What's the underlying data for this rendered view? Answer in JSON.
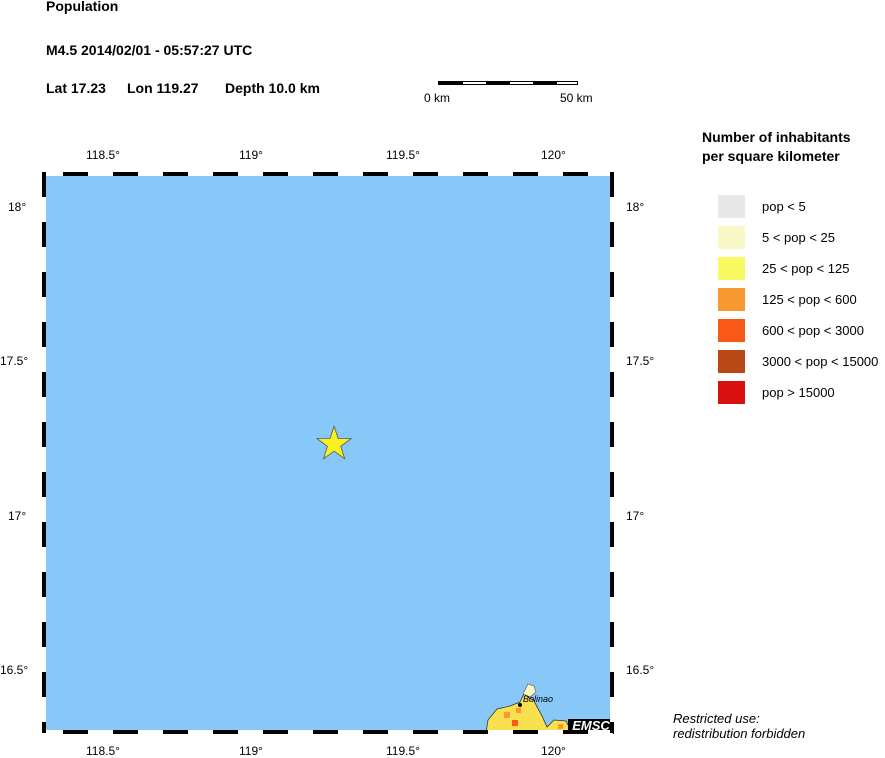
{
  "title": "Population",
  "event": "M4.5  2014/02/01 - 05:57:27 UTC",
  "location": {
    "lat": "Lat 17.23",
    "lon": "Lon 119.27",
    "depth": "Depth  10.0 km"
  },
  "scale": {
    "start": "0 km",
    "end": "50 km"
  },
  "lon_ticks": [
    "118.5°",
    "119°",
    "119.5°",
    "120°"
  ],
  "lat_ticks": [
    "18°",
    "17.5°",
    "17°",
    "16.5°"
  ],
  "epicenter": {
    "lat": 17.23,
    "lon": 119.27,
    "color": "#f8f020"
  },
  "place": "Bolinao",
  "logo": "EMSC",
  "legend": {
    "title1": "Number of inhabitants",
    "title2": "per square kilometer",
    "items": [
      {
        "label": "pop < 5",
        "color": "#e8e8e8"
      },
      {
        "label": "5 < pop < 25",
        "color": "#f8f8c8"
      },
      {
        "label": "25 < pop < 125",
        "color": "#f8f860"
      },
      {
        "label": "125 < pop < 600",
        "color": "#f89830"
      },
      {
        "label": "600 < pop < 3000",
        "color": "#f85818"
      },
      {
        "label": "3000 < pop < 15000",
        "color": "#b84818"
      },
      {
        "label": "pop > 15000",
        "color": "#d81010"
      }
    ]
  },
  "notice1": "Restricted use:",
  "notice2": "redistribution forbidden"
}
